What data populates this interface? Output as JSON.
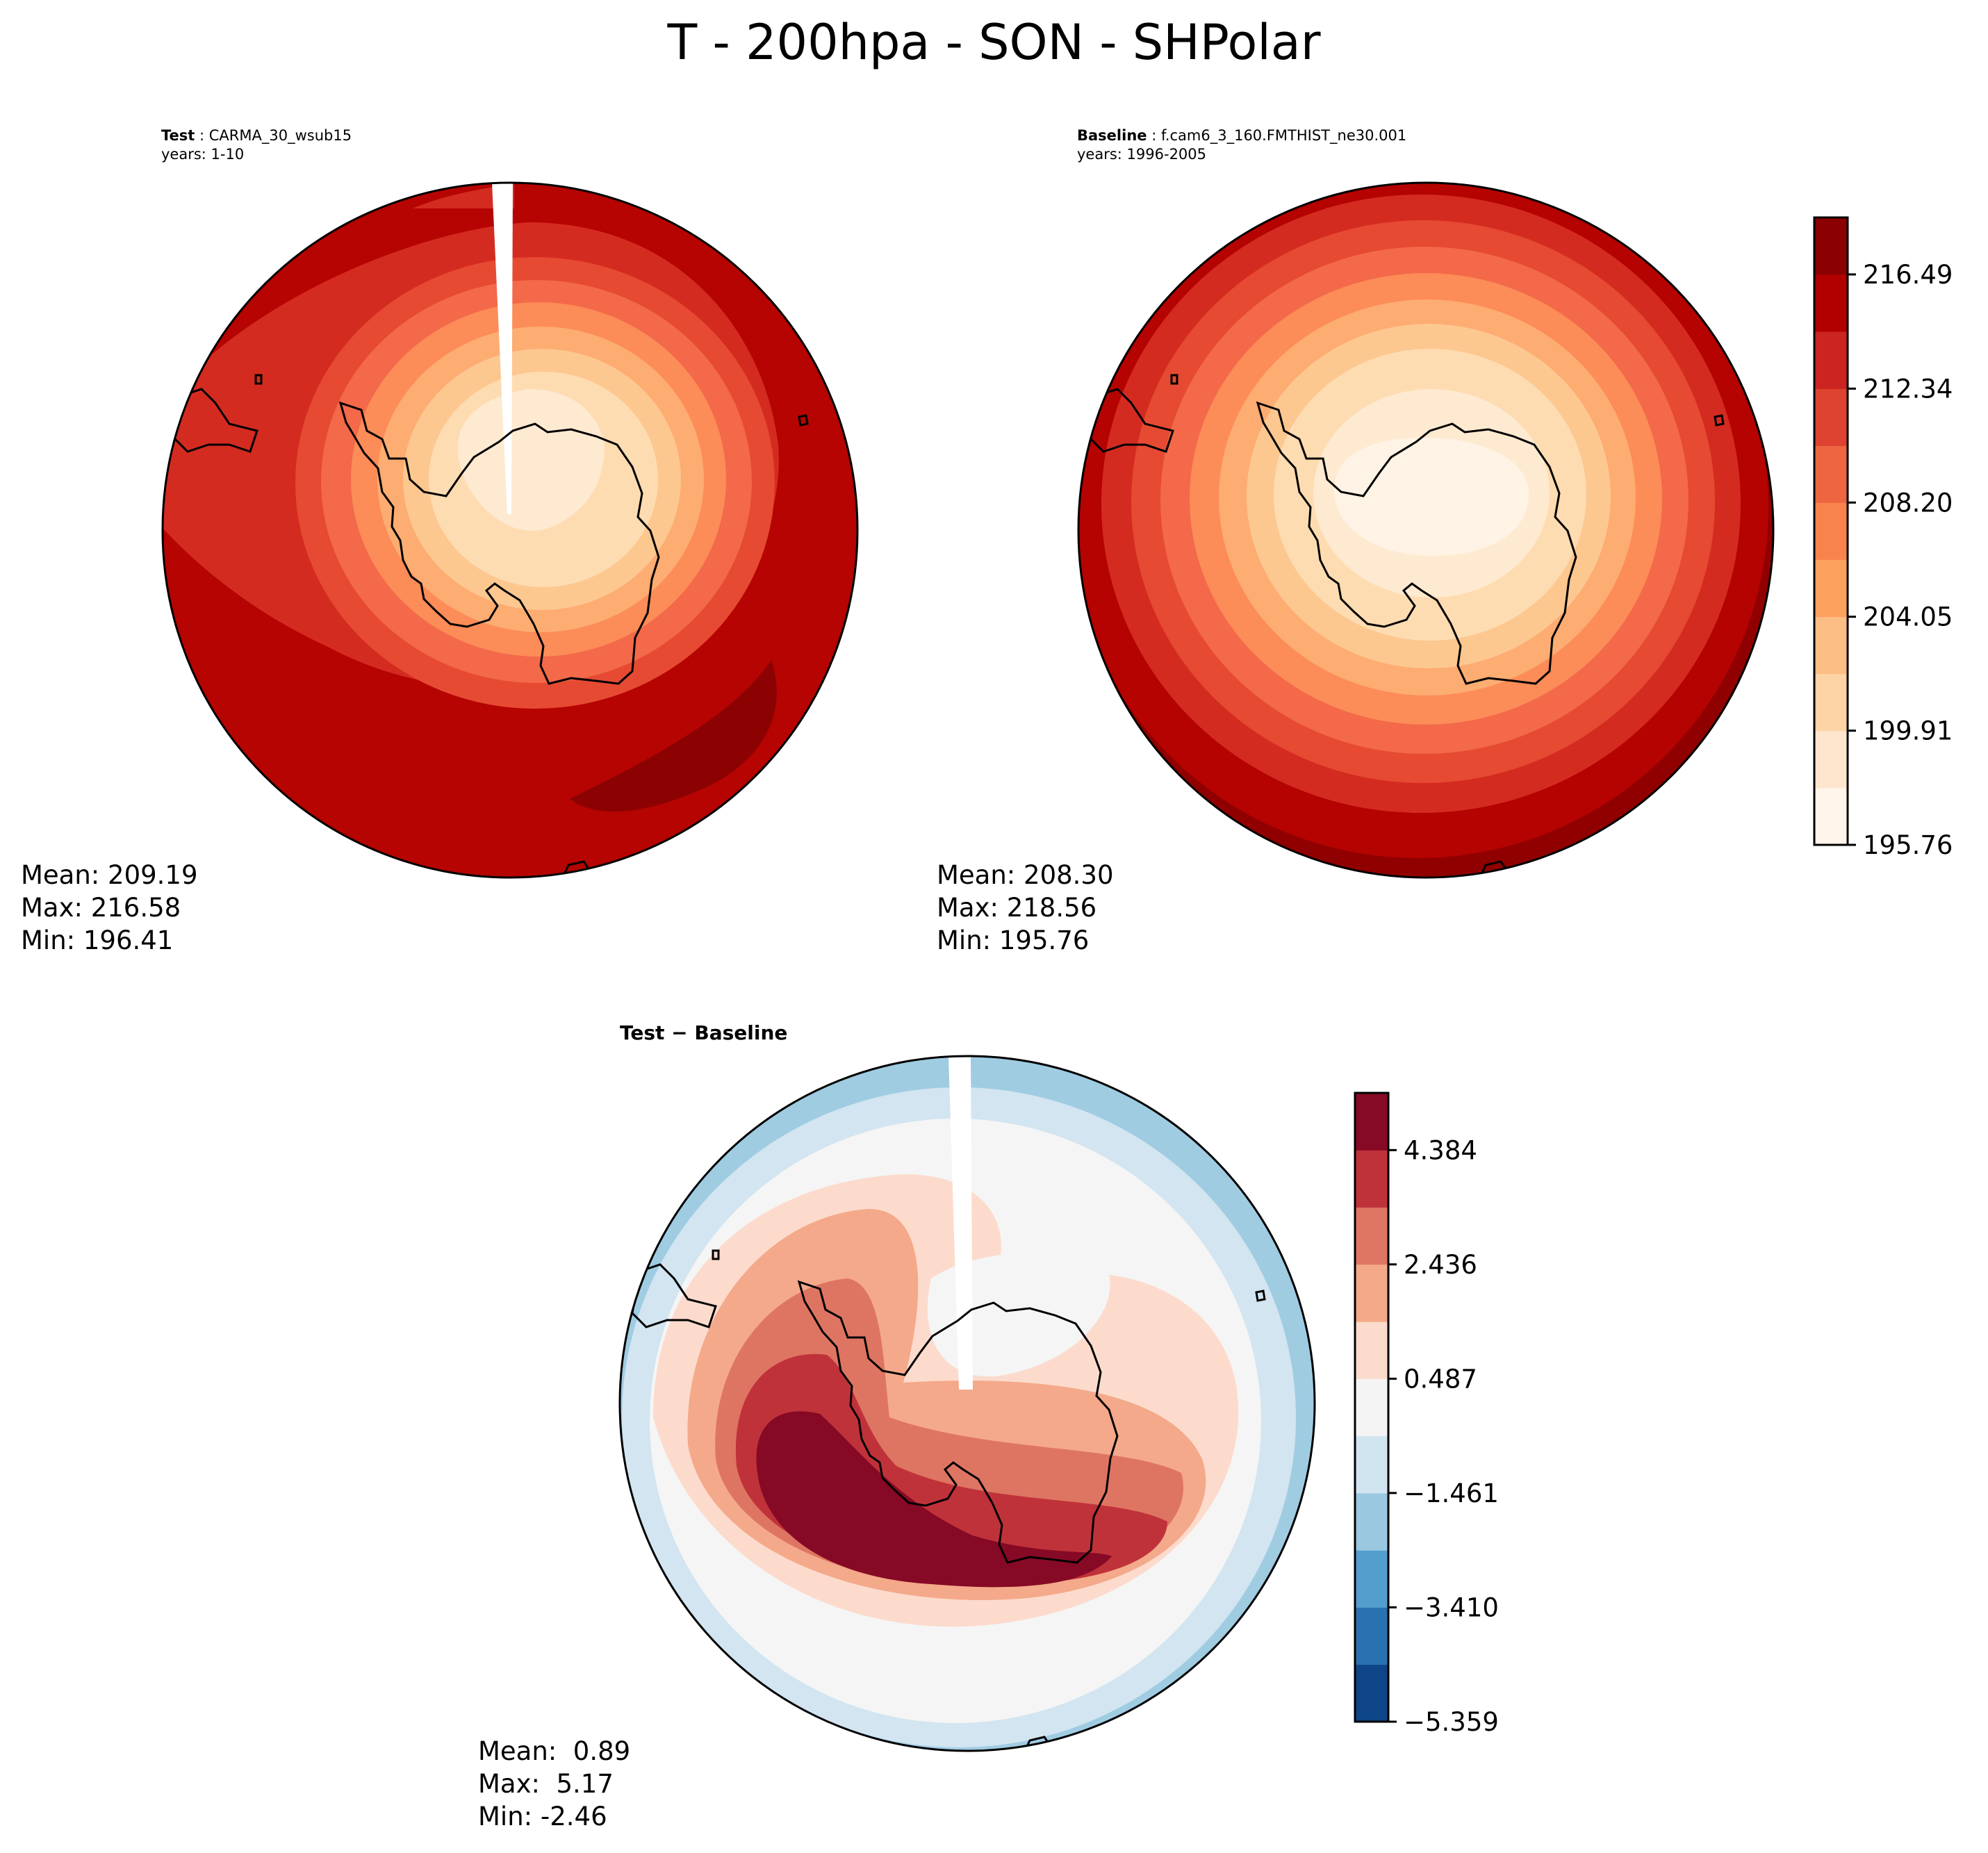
{
  "title": "T - 200hpa - SON - SHPolar",
  "test_panel": {
    "label": "Test",
    "case": "CARMA_30_wsub15",
    "years": "years: 1-10",
    "stats": {
      "mean": "Mean: 209.19",
      "max": "Max: 216.58",
      "min": "Min: 196.41"
    }
  },
  "baseline_panel": {
    "label": "Baseline",
    "case": "f.cam6_3_160.FMTHIST_ne30.001",
    "years": "years: 1996-2005",
    "stats": {
      "mean": "Mean: 208.30",
      "max": "Max: 218.56",
      "min": "Min: 195.76"
    }
  },
  "diff_panel": {
    "title": "Test − Baseline",
    "stats": {
      "mean": "Mean:  0.89",
      "max": "Max:  5.17",
      "min": "Min: -2.46"
    }
  },
  "chart_data": [
    {
      "type": "heatmap",
      "name": "test",
      "projection": "south-polar-stereographic",
      "variable": "T",
      "level": "200hpa",
      "season": "SON",
      "region": "SHPolar",
      "mean": 209.19,
      "max": 216.58,
      "min": 196.41,
      "approx_ring_levels_pole_to_edge": [
        197.8,
        199.9,
        202.0,
        204.0,
        206.1,
        208.2,
        210.3,
        212.3,
        214.4,
        216.5
      ],
      "colors": [
        "#fef0df",
        "#fee3c5",
        "#fdd09f",
        "#fdb97d",
        "#fc9d60",
        "#f7794d",
        "#e85639",
        "#d62f22",
        "#b60302",
        "#990000",
        "#7f0000"
      ]
    },
    {
      "type": "heatmap",
      "name": "baseline",
      "mean": 208.3,
      "max": 218.56,
      "min": 195.76,
      "approx_ring_levels_pole_to_edge": [
        197.8,
        199.9,
        202.0,
        204.0,
        206.1,
        208.2,
        210.3,
        212.3,
        214.4,
        216.5,
        218.6
      ],
      "colors": [
        "#fef0df",
        "#fee3c5",
        "#fdd09f",
        "#fdb97d",
        "#fc9d60",
        "#f7794d",
        "#e85639",
        "#d62f22",
        "#b60302",
        "#990000",
        "#7f0000"
      ]
    },
    {
      "type": "heatmap",
      "name": "difference",
      "mean": 0.89,
      "max": 5.17,
      "min": -2.46,
      "colors": [
        "#0f3d7a",
        "#2970b5",
        "#5aa1cf",
        "#9ecae1",
        "#d1e5f0",
        "#f5f5f5",
        "#fcdacc",
        "#f4a582",
        "#d6604d",
        "#b92e34",
        "#86091f"
      ]
    },
    {
      "type": "colorbar",
      "name": "absolute-colorbar",
      "levels": [
        195.76,
        197.83,
        199.91,
        201.98,
        204.05,
        206.13,
        208.2,
        210.27,
        212.34,
        214.42,
        216.49,
        218.56
      ],
      "tick_labels": [
        "195.76",
        "199.91",
        "204.05",
        "208.20",
        "212.34",
        "216.49"
      ],
      "colors": [
        "#fff5eb",
        "#fee6ce",
        "#fdd4a6",
        "#fdbe86",
        "#fda15f",
        "#f8834d",
        "#ed6541",
        "#de4230",
        "#cc2421",
        "#b20000",
        "#8b0000"
      ]
    },
    {
      "type": "colorbar",
      "name": "difference-colorbar",
      "levels": [
        -5.359,
        -4.384,
        -3.41,
        -2.436,
        -1.461,
        -0.487,
        0.487,
        1.461,
        2.436,
        3.41,
        4.384,
        5.359
      ],
      "tick_labels": [
        "−5.359",
        "−3.410",
        "−1.461",
        "0.487",
        "2.436",
        "4.384"
      ],
      "colors": [
        "#0e4587",
        "#2a71b2",
        "#549ecd",
        "#9ac8e0",
        "#d1e5f0",
        "#f4f4f4",
        "#fbdbcc",
        "#f4aa89",
        "#df7663",
        "#c0323a",
        "#860a25"
      ]
    }
  ]
}
